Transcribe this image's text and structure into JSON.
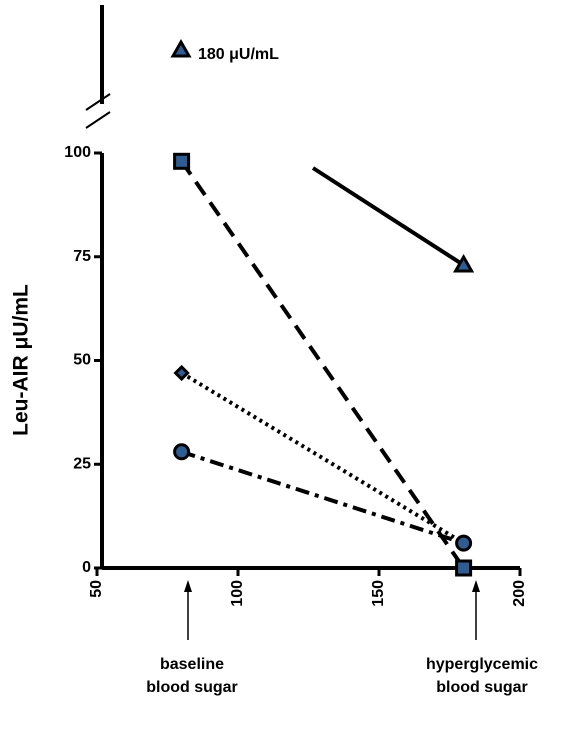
{
  "chart_data": {
    "type": "line",
    "y_label": "Leu-AIR μU/mL",
    "x": [
      80,
      180
    ],
    "series": [
      {
        "values": [
          98,
          0
        ],
        "marker": "square",
        "dash": "dashed",
        "color": "#2f5d93"
      },
      {
        "values": [
          47,
          6
        ],
        "marker": "diamond",
        "dash": "dotted",
        "color": "#2f5d93"
      },
      {
        "values": [
          28,
          6
        ],
        "marker": "circle",
        "dash": "dashdot",
        "color": "#2f5d93"
      },
      {
        "values": [
          180,
          73
        ],
        "marker": "triangle",
        "dash": "solid",
        "color": "#2f5d93"
      }
    ],
    "annotation": "180 μU/mL",
    "baseline_label": [
      "baseline",
      "blood sugar"
    ],
    "hyper_label": [
      "hyperglycemic",
      "blood sugar"
    ],
    "xlim": [
      50,
      200
    ],
    "xticks": [
      50,
      100,
      150,
      200
    ],
    "ylim": [
      0,
      100
    ],
    "yticks": [
      0,
      25,
      50,
      75,
      100
    ]
  }
}
